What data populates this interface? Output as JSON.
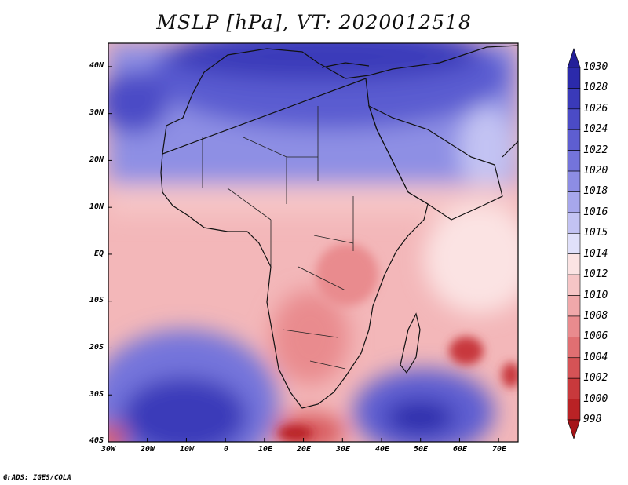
{
  "title": "MSLP [hPa], VT: 2020012518",
  "credit": "GrADS: IGES/COLA",
  "map": {
    "lon_range": [
      -30,
      75
    ],
    "lat_range": [
      -40,
      45
    ],
    "lat_labels": [
      "40N",
      "30N",
      "20N",
      "10N",
      "EQ",
      "10S",
      "20S",
      "30S",
      "40S"
    ],
    "lon_labels": [
      "30W",
      "20W",
      "10W",
      "0",
      "10E",
      "20E",
      "30E",
      "40E",
      "50E",
      "60E",
      "70E"
    ],
    "background_color": "#f3b7b9"
  },
  "pressure_field": [
    {
      "name": "subtropical-high-north-africa",
      "lon": 15,
      "lat": 31,
      "value_hpa": 1026,
      "rx": 55,
      "ry": 13
    },
    {
      "name": "mediterranean-high",
      "lon": 25,
      "lat": 40,
      "value_hpa": 1028,
      "rx": 30,
      "ry": 8
    },
    {
      "name": "azores-high",
      "lon": -28,
      "lat": 34,
      "value_hpa": 1024,
      "rx": 12,
      "ry": 9
    },
    {
      "name": "south-atlantic-high",
      "lon": -12,
      "lat": -34,
      "value_hpa": 1028,
      "rx": 20,
      "ry": 10
    },
    {
      "name": "south-indian-high",
      "lon": 52,
      "lat": -35,
      "value_hpa": 1026,
      "rx": 18,
      "ry": 8
    },
    {
      "name": "mozambique-low",
      "lon": 61,
      "lat": -21,
      "value_hpa": 1002,
      "rx": 6,
      "ry": 5
    },
    {
      "name": "southern-low",
      "lon": 20,
      "lat": -40,
      "value_hpa": 1000,
      "rx": 6,
      "ry": 4
    }
  ],
  "colorbar": {
    "levels": [
      "1030",
      "1028",
      "1026",
      "1024",
      "1022",
      "1020",
      "1018",
      "1016",
      "1015",
      "1014",
      "1012",
      "1010",
      "1008",
      "1006",
      "1004",
      "1002",
      "1000",
      "998"
    ],
    "colors": [
      "#231f99",
      "#2b2aab",
      "#3a3ab9",
      "#4b4bc6",
      "#5e5ed1",
      "#7474db",
      "#8d8de4",
      "#a7a7ec",
      "#c3c3f3",
      "#e0e0fa",
      "#fbe3e3",
      "#f6c5c6",
      "#f0a8aa",
      "#e98b8e",
      "#e06f72",
      "#d55356",
      "#c8393c",
      "#b92225",
      "#a51418"
    ]
  }
}
